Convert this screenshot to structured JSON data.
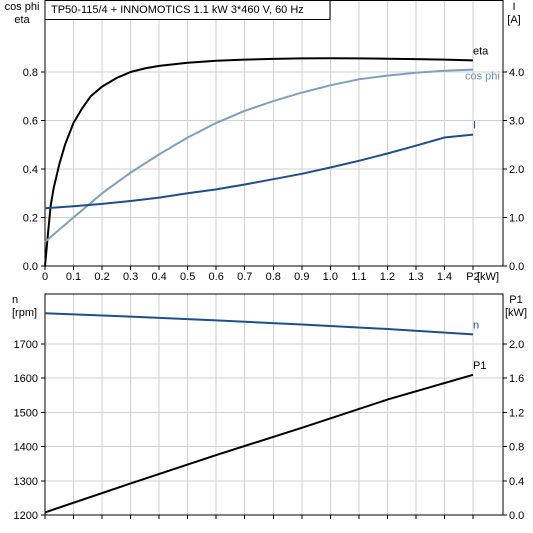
{
  "chart_data": [
    {
      "type": "line",
      "title": "TP50-115/4 + INNOMOTICS   1.1 kW   3*460 V, 60 Hz",
      "xlabel": "P2 [kW]",
      "x_unit": "[kW]",
      "xlim": [
        0,
        1.5
      ],
      "xticks": [
        "0",
        "0.1",
        "0.2",
        "0.3",
        "0.4",
        "0.5",
        "0.6",
        "0.7",
        "0.8",
        "0.9",
        "1.0",
        "1.1",
        "1.2",
        "1.3",
        "1.4",
        "P2"
      ],
      "ylabel_left": [
        "cos phi",
        "eta"
      ],
      "ylim_left": [
        0,
        1.0
      ],
      "yticks_left": [
        "0.0",
        "0.2",
        "0.4",
        "0.6",
        "0.8"
      ],
      "ylabel_right": [
        "I",
        "[A]"
      ],
      "ylim_right": [
        0,
        5.0
      ],
      "yticks_right": [
        "0.0",
        "1.0",
        "2.0",
        "3.0",
        "4.0"
      ],
      "grid": true,
      "series": [
        {
          "name": "eta",
          "axis": "left",
          "color": "#000000",
          "x": [
            0,
            0.01,
            0.02,
            0.03,
            0.05,
            0.07,
            0.1,
            0.13,
            0.16,
            0.2,
            0.25,
            0.3,
            0.35,
            0.4,
            0.5,
            0.6,
            0.7,
            0.8,
            0.9,
            1.0,
            1.1,
            1.2,
            1.3,
            1.4,
            1.5
          ],
          "y": [
            0,
            0.13,
            0.25,
            0.32,
            0.42,
            0.5,
            0.59,
            0.65,
            0.7,
            0.74,
            0.775,
            0.8,
            0.815,
            0.825,
            0.838,
            0.846,
            0.851,
            0.854,
            0.856,
            0.857,
            0.856,
            0.855,
            0.853,
            0.851,
            0.848
          ]
        },
        {
          "name": "cos phi",
          "axis": "left",
          "color": "#7f9fbf",
          "x": [
            0,
            0.1,
            0.2,
            0.3,
            0.4,
            0.5,
            0.6,
            0.7,
            0.8,
            0.9,
            1.0,
            1.1,
            1.2,
            1.3,
            1.4,
            1.5
          ],
          "y": [
            0.1,
            0.2,
            0.3,
            0.385,
            0.46,
            0.53,
            0.59,
            0.64,
            0.68,
            0.715,
            0.745,
            0.77,
            0.785,
            0.797,
            0.805,
            0.81
          ]
        },
        {
          "name": "I",
          "axis": "right",
          "color": "#1f4e8c",
          "x": [
            0,
            0.1,
            0.2,
            0.3,
            0.4,
            0.5,
            0.6,
            0.7,
            0.8,
            0.9,
            1.0,
            1.1,
            1.2,
            1.3,
            1.4,
            1.5
          ],
          "y": [
            1.19,
            1.23,
            1.28,
            1.34,
            1.41,
            1.5,
            1.58,
            1.68,
            1.79,
            1.9,
            2.03,
            2.17,
            2.32,
            2.48,
            2.65,
            2.71
          ]
        }
      ]
    },
    {
      "type": "line",
      "xlim": [
        0,
        1.5
      ],
      "ylabel_left": [
        "n",
        "[rpm]"
      ],
      "ylim_left": [
        1200,
        1800
      ],
      "yticks_left": [
        "1200",
        "1300",
        "1400",
        "1500",
        "1600",
        "1700"
      ],
      "ylabel_right": [
        "P1",
        "[kW]"
      ],
      "ylim_right": [
        0,
        2.4
      ],
      "yticks_right": [
        "0.0",
        "0.4",
        "0.8",
        "1.2",
        "1.6",
        "2.0"
      ],
      "grid": true,
      "series": [
        {
          "name": "n",
          "axis": "left",
          "color": "#1f4e8c",
          "x": [
            0,
            0.3,
            0.6,
            0.9,
            1.2,
            1.5
          ],
          "y": [
            1790,
            1780,
            1769,
            1757,
            1744,
            1728
          ]
        },
        {
          "name": "P1",
          "axis": "right",
          "color": "#000000",
          "x": [
            0,
            0.3,
            0.6,
            0.9,
            1.2,
            1.5
          ],
          "y": [
            0.03,
            0.37,
            0.7,
            1.02,
            1.35,
            1.64
          ]
        }
      ]
    }
  ]
}
